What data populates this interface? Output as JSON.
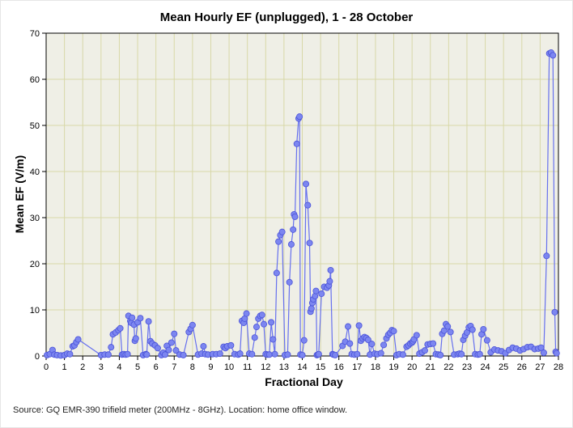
{
  "chart_data": {
    "type": "line",
    "title": "Mean Hourly EF (unplugged), 1 - 28 October",
    "xlabel": "Fractional Day",
    "ylabel": "Mean EF (V/m)",
    "source": "Source: GQ EMR-390 trifield meter (200MHz - 8GHz). Location: home office window.",
    "xlim": [
      0,
      28
    ],
    "ylim": [
      0,
      70
    ],
    "xticks": [
      0,
      1,
      2,
      3,
      4,
      5,
      6,
      7,
      8,
      9,
      10,
      11,
      12,
      13,
      14,
      15,
      16,
      17,
      18,
      19,
      20,
      21,
      22,
      23,
      24,
      25,
      26,
      27,
      28
    ],
    "yticks": [
      0,
      10,
      20,
      30,
      40,
      50,
      60,
      70
    ],
    "grid": true,
    "colors": {
      "line": "#6670ee",
      "marker_fill": "#7c86f0",
      "marker_edge": "#4a52d8",
      "plot_bg": "#efefe6",
      "grid": "#d8d8a8"
    },
    "series": [
      {
        "x": [
          0.05,
          0.2,
          0.35,
          0.45,
          0.6,
          0.8,
          1.0,
          1.15,
          1.3,
          1.45,
          1.55,
          1.65,
          1.75,
          3.0,
          3.2,
          3.4,
          3.55,
          3.65,
          3.8,
          3.95,
          4.05,
          4.15,
          4.25,
          4.35,
          4.45,
          4.5,
          4.6,
          4.65,
          4.7,
          4.8,
          4.85,
          4.9,
          5.0,
          5.15,
          5.3,
          5.45,
          5.5,
          5.6,
          5.7,
          5.8,
          5.95,
          6.1,
          6.3,
          6.4,
          6.5,
          6.6,
          6.7,
          6.85,
          7.0,
          7.1,
          7.3,
          7.5,
          7.8,
          7.9,
          8.0,
          8.3,
          8.5,
          8.6,
          8.7,
          8.85,
          9.1,
          9.3,
          9.5,
          9.7,
          9.8,
          9.9,
          10.1,
          10.3,
          10.5,
          10.6,
          10.7,
          10.8,
          10.85,
          10.95,
          11.1,
          11.25,
          11.4,
          11.5,
          11.6,
          11.7,
          11.8,
          11.9,
          12.0,
          12.1,
          12.2,
          12.3,
          12.4,
          12.5,
          12.6,
          12.7,
          12.8,
          12.9,
          13.05,
          13.2,
          13.3,
          13.4,
          13.5,
          13.55,
          13.6,
          13.7,
          13.8,
          13.85,
          13.9,
          14.0,
          14.1,
          14.2,
          14.3,
          14.4,
          14.45,
          14.5,
          14.55,
          14.6,
          14.7,
          14.75,
          14.8,
          14.85,
          14.9,
          15.05,
          15.2,
          15.35,
          15.45,
          15.5,
          15.55,
          15.65,
          15.7,
          15.8,
          16.2,
          16.35,
          16.5,
          16.6,
          16.7,
          16.85,
          17.0,
          17.1,
          17.2,
          17.3,
          17.4,
          17.5,
          17.6,
          17.7,
          17.8,
          17.95,
          18.1,
          18.3,
          18.45,
          18.6,
          18.7,
          18.8,
          18.9,
          19.0,
          19.15,
          19.3,
          19.5,
          19.7,
          19.8,
          19.9,
          20.0,
          20.05,
          20.1,
          20.25,
          20.4,
          20.55,
          20.7,
          20.85,
          21.0,
          21.15,
          21.3,
          21.45,
          21.55,
          21.65,
          21.75,
          21.85,
          21.95,
          22.1,
          22.3,
          22.5,
          22.6,
          22.7,
          22.8,
          22.9,
          23.0,
          23.1,
          23.2,
          23.3,
          23.45,
          23.6,
          23.7,
          23.8,
          23.9,
          24.1,
          24.3,
          24.5,
          24.7,
          24.9,
          25.1,
          25.3,
          25.5,
          25.7,
          25.9,
          26.1,
          26.3,
          26.5,
          26.7,
          26.9,
          27.05,
          27.2,
          27.35,
          27.5,
          27.6,
          27.7,
          27.8,
          27.85,
          27.9
        ],
        "y": [
          0.2,
          0.4,
          1.3,
          0.3,
          0.2,
          0.1,
          0.2,
          0.5,
          0.4,
          2.1,
          2.3,
          3.0,
          3.6,
          0.2,
          0.3,
          0.3,
          1.9,
          4.7,
          5.1,
          5.6,
          6.0,
          0.3,
          0.4,
          0.3,
          0.4,
          8.7,
          7.6,
          7.2,
          8.3,
          6.8,
          3.3,
          3.8,
          7.3,
          8.2,
          0.2,
          0.4,
          0.3,
          7.5,
          3.2,
          2.7,
          2.3,
          1.7,
          0.2,
          0.7,
          0.3,
          2.2,
          1.3,
          2.9,
          4.8,
          1.2,
          0.3,
          0.2,
          5.2,
          5.9,
          6.7,
          0.3,
          0.5,
          2.1,
          0.4,
          0.3,
          0.4,
          0.4,
          0.5,
          2.0,
          1.7,
          2.1,
          2.3,
          0.4,
          0.3,
          0.5,
          7.6,
          7.2,
          8.1,
          9.2,
          0.5,
          0.4,
          4.0,
          6.3,
          8.1,
          8.7,
          8.9,
          6.9,
          0.4,
          0.3,
          0.3,
          7.3,
          3.6,
          0.4,
          18.0,
          24.8,
          26.2,
          26.9,
          0.2,
          0.3,
          16.0,
          24.2,
          27.4,
          30.7,
          30.2,
          46.0,
          51.5,
          51.9,
          0.3,
          0.2,
          3.4,
          37.3,
          32.7,
          24.5,
          9.6,
          10.3,
          11.5,
          12.3,
          13.0,
          14.1,
          0.2,
          0.3,
          0.4,
          13.5,
          15.0,
          14.8,
          15.3,
          16.2,
          18.6,
          0.4,
          0.3,
          0.2,
          2.2,
          3.1,
          6.4,
          2.7,
          0.4,
          0.3,
          0.4,
          6.6,
          3.3,
          3.8,
          4.1,
          3.9,
          3.5,
          0.3,
          2.6,
          0.5,
          0.4,
          0.6,
          2.4,
          3.8,
          4.6,
          5.0,
          5.6,
          5.4,
          0.2,
          0.4,
          0.3,
          2.0,
          2.3,
          2.7,
          2.9,
          3.2,
          3.6,
          4.5,
          0.5,
          0.8,
          1.2,
          2.5,
          2.6,
          2.7,
          0.4,
          0.3,
          0.2,
          4.8,
          5.5,
          6.9,
          6.4,
          5.2,
          0.3,
          0.4,
          0.5,
          0.4,
          3.5,
          4.4,
          5.1,
          6.2,
          6.5,
          5.7,
          0.4,
          0.3,
          0.4,
          4.7,
          5.8,
          3.4,
          0.8,
          1.4,
          1.2,
          1.0,
          0.6,
          1.3,
          1.8,
          1.6,
          1.2,
          1.5,
          1.9,
          2.0,
          1.5,
          1.6,
          1.8,
          0.7,
          21.7,
          65.6,
          65.8,
          65.2,
          9.5,
          0.9,
          0.6
        ]
      }
    ]
  }
}
